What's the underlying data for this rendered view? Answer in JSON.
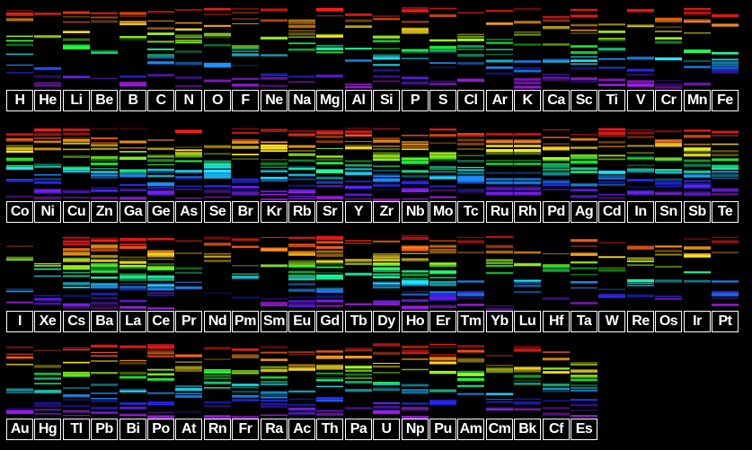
{
  "chart_data": {
    "type": "spectra-grid",
    "background": "#000000",
    "label_border": "#ffffff",
    "label_text_color": "#ffffff",
    "rows": [
      [
        "H",
        "He",
        "Li",
        "Be",
        "B",
        "C",
        "N",
        "O",
        "F",
        "Ne",
        "Na",
        "Mg",
        "Al",
        "Si",
        "P",
        "S",
        "Cl",
        "Ar",
        "K",
        "Ca",
        "Sc",
        "Ti",
        "V",
        "Cr",
        "Mn",
        "Fe"
      ],
      [
        "Co",
        "Ni",
        "Cu",
        "Zn",
        "Ga",
        "Ge",
        "As",
        "Se",
        "Br",
        "Kr",
        "Rb",
        "Sr",
        "Y",
        "Zr",
        "Nb",
        "Mo",
        "Tc",
        "Ru",
        "Rh",
        "Pd",
        "Ag",
        "Cd",
        "In",
        "Sn",
        "Sb",
        "Te"
      ],
      [
        "I",
        "Xe",
        "Cs",
        "Ba",
        "La",
        "Ce",
        "Pr",
        "Nd",
        "Pm",
        "Sm",
        "Eu",
        "Gd",
        "Tb",
        "Dy",
        "Ho",
        "Er",
        "Tm",
        "Yb",
        "Lu",
        "Hf",
        "Ta",
        "W",
        "Re",
        "Os",
        "Ir",
        "Pt"
      ],
      [
        "Au",
        "Hg",
        "Tl",
        "Pb",
        "Bi",
        "Po",
        "At",
        "Rn",
        "Fr",
        "Ra",
        "Ac",
        "Th",
        "Pa",
        "U",
        "Np",
        "Pu",
        "Am",
        "Cm",
        "Bk",
        "Cf",
        "Es"
      ]
    ],
    "spectrum_colors": [
      "#ff1a1a",
      "#ff5a14",
      "#ffa014",
      "#ffe61e",
      "#a0ff1e",
      "#1eff3c",
      "#1effa0",
      "#1ee6ff",
      "#1e8cff",
      "#2828ff",
      "#6e1eff",
      "#a01ee6"
    ]
  }
}
